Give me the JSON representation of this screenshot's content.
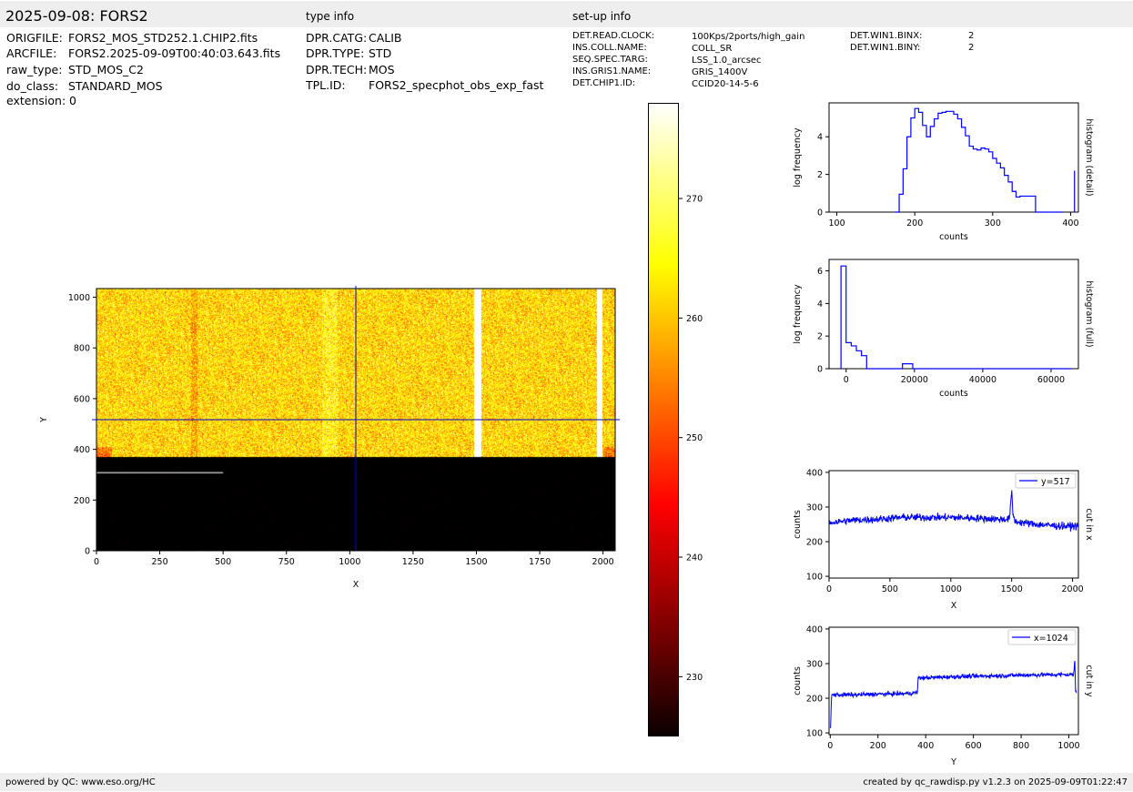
{
  "header": {
    "title": "2025-09-08: FORS2",
    "type_info_label": "type info",
    "setup_info_label": "set-up info"
  },
  "file_info": [
    {
      "key": "ORIGFILE:",
      "value": "FORS2_MOS_STD252.1.CHIP2.fits"
    },
    {
      "key": "ARCFILE:",
      "value": "FORS2.2025-09-09T00:40:03.643.fits"
    },
    {
      "key": "raw_type:",
      "value": "STD_MOS_C2"
    },
    {
      "key": "do_class:",
      "value": "STANDARD_MOS"
    },
    {
      "key": "extension:",
      "value": "0"
    }
  ],
  "type_info": [
    {
      "key": "DPR.CATG:",
      "value": "CALIB"
    },
    {
      "key": "DPR.TYPE:",
      "value": "STD"
    },
    {
      "key": "DPR.TECH:",
      "value": "MOS"
    },
    {
      "key": "TPL.ID:",
      "value": "FORS2_specphot_obs_exp_fast"
    }
  ],
  "setup_info": [
    {
      "key": "DET.READ.CLOCK:",
      "value": "100Kps/2ports/high_gain"
    },
    {
      "key": "INS.COLL.NAME:",
      "value": "COLL_SR"
    },
    {
      "key": "SEQ.SPEC.TARG:",
      "value": "LSS_1.0_arcsec"
    },
    {
      "key": "INS.GRIS1.NAME:",
      "value": "GRIS_1400V"
    },
    {
      "key": "DET.CHIP1.ID:",
      "value": "CCID20-14-5-6"
    }
  ],
  "setup_info2": [
    {
      "key": "DET.WIN1.BINX:",
      "value": "2"
    },
    {
      "key": "DET.WIN1.BINY:",
      "value": "2"
    }
  ],
  "footer": {
    "left": "powered by QC: www.eso.org/HC",
    "right": "created by qc_rawdisp.py v1.2.3 on 2025-09-09T01:22:47"
  },
  "colors": {
    "line": "#0000ff",
    "band": "#eeeeee"
  },
  "chart_data": [
    {
      "type": "heatmap",
      "id": "image",
      "xlabel": "X",
      "ylabel": "Y",
      "xlim": [
        0,
        2048
      ],
      "ylim": [
        0,
        1034
      ],
      "xticks": [
        0,
        250,
        500,
        750,
        1000,
        1250,
        1500,
        1750,
        2000
      ],
      "yticks": [
        0,
        200,
        400,
        600,
        800,
        1000
      ],
      "crosshair": {
        "x": 1024,
        "y": 517
      },
      "colormap": "hot",
      "colorbar": {
        "range": [
          225,
          278
        ],
        "ticks": [
          230,
          240,
          250,
          260,
          270
        ]
      }
    },
    {
      "type": "line",
      "id": "hist-detail",
      "side_label": "histogram (detail)",
      "xlabel": "counts",
      "ylabel": "log frequency",
      "xlim": [
        90,
        410
      ],
      "ylim": [
        0,
        5.8
      ],
      "xticks": [
        100,
        200,
        300,
        400
      ],
      "yticks": [
        0,
        2,
        4
      ],
      "step": true,
      "x": [
        175,
        180,
        185,
        190,
        195,
        200,
        205,
        210,
        215,
        220,
        225,
        230,
        235,
        240,
        245,
        250,
        255,
        260,
        265,
        270,
        275,
        280,
        285,
        290,
        295,
        300,
        305,
        310,
        315,
        320,
        325,
        330,
        335,
        340,
        345,
        350,
        355,
        360,
        365,
        370,
        375,
        380,
        385,
        390
      ],
      "y": [
        0,
        0.95,
        2.3,
        4.0,
        5.0,
        5.5,
        5.3,
        4.6,
        4.0,
        4.55,
        4.95,
        5.25,
        5.3,
        5.35,
        5.35,
        5.2,
        4.95,
        4.5,
        4.05,
        3.5,
        3.35,
        3.3,
        3.4,
        3.35,
        3.2,
        2.85,
        2.6,
        2.35,
        1.95,
        1.6,
        1.1,
        0.8,
        0.85,
        0.85,
        0.85,
        0.85,
        0,
        0,
        0,
        0,
        0,
        0,
        0,
        0
      ]
    },
    {
      "type": "line",
      "id": "hist-full",
      "side_label": "histogram (full)",
      "xlabel": "counts",
      "ylabel": "log frequency",
      "xlim": [
        -5000,
        68000
      ],
      "ylim": [
        0,
        6.7
      ],
      "xticks": [
        0,
        20000,
        40000,
        60000
      ],
      "yticks": [
        0,
        2,
        4,
        6
      ],
      "step": true,
      "x": [
        -1500,
        0,
        1500,
        3000,
        4500,
        6000,
        7500,
        16500,
        18000,
        19500,
        21000,
        66000
      ],
      "y": [
        6.3,
        1.6,
        1.4,
        1.1,
        0.8,
        0,
        0,
        0.3,
        0.3,
        0,
        0,
        0
      ]
    },
    {
      "type": "line",
      "id": "cut-x",
      "side_label": "cut in x",
      "legend": "y=517",
      "xlabel": "X",
      "ylabel": "counts",
      "xlim": [
        0,
        2048
      ],
      "ylim": [
        95,
        405
      ],
      "xticks": [
        0,
        500,
        1000,
        1500,
        2000
      ],
      "yticks": [
        100,
        200,
        300,
        400
      ],
      "segments": [
        [
          0,
          255
        ],
        [
          200,
          262
        ],
        [
          400,
          265
        ],
        [
          600,
          270
        ],
        [
          800,
          270
        ],
        [
          1000,
          270
        ],
        [
          1200,
          268
        ],
        [
          1400,
          265
        ],
        [
          1480,
          265
        ],
        [
          1490,
          300
        ],
        [
          1500,
          345
        ],
        [
          1510,
          280
        ],
        [
          1530,
          258
        ],
        [
          1700,
          250
        ],
        [
          1900,
          245
        ],
        [
          2048,
          245
        ]
      ],
      "noise": 12
    },
    {
      "type": "line",
      "id": "cut-y",
      "side_label": "cut in y",
      "legend": "x=1024",
      "xlabel": "Y",
      "ylabel": "counts",
      "xlim": [
        -5,
        1040
      ],
      "ylim": [
        95,
        405
      ],
      "xticks": [
        0,
        200,
        400,
        600,
        800,
        1000
      ],
      "yticks": [
        100,
        200,
        300,
        400
      ],
      "segments": [
        [
          0,
          95
        ],
        [
          5,
          210
        ],
        [
          100,
          210
        ],
        [
          200,
          212
        ],
        [
          300,
          213
        ],
        [
          365,
          216
        ],
        [
          368,
          258
        ],
        [
          500,
          262
        ],
        [
          700,
          265
        ],
        [
          900,
          268
        ],
        [
          1020,
          268
        ],
        [
          1025,
          310
        ],
        [
          1028,
          220
        ],
        [
          1034,
          220
        ]
      ],
      "noise": 7
    }
  ]
}
